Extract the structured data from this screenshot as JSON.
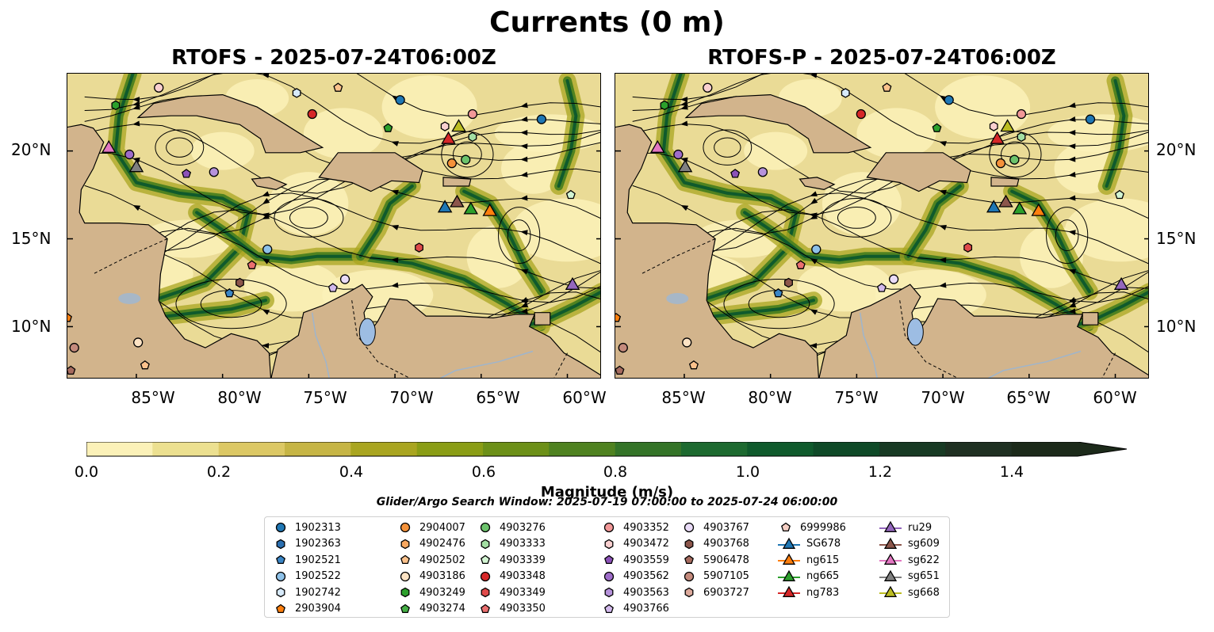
{
  "title": "Currents (0 m)",
  "panels": [
    {
      "title": "RTOFS - 2025-07-24T06:00Z"
    },
    {
      "title": "RTOFS-P - 2025-07-24T06:00Z"
    }
  ],
  "lat_labels": [
    "20°N",
    "15°N",
    "10°N"
  ],
  "lon_labels": [
    "85°W",
    "80°W",
    "75°W",
    "70°W",
    "65°W",
    "60°W"
  ],
  "map_extent": {
    "lon": [
      -89,
      -58
    ],
    "lat": [
      7,
      24.4
    ]
  },
  "colorbar": {
    "label": "Magnitude (m/s)",
    "ticks": [
      "0.0",
      "0.2",
      "0.4",
      "0.6",
      "0.8",
      "1.0",
      "1.2",
      "1.4"
    ],
    "colors": [
      "#fbf1b8",
      "#ece090",
      "#dcc865",
      "#c6b545",
      "#a9a520",
      "#8a9d15",
      "#6c9018",
      "#4f8220",
      "#347428",
      "#1d6a30",
      "#0f5a2c",
      "#0f4a28",
      "#183a24",
      "#1f3022",
      "#1c2a1a"
    ]
  },
  "search_window": "Glider/Argo Search Window: 2025-07-19 07:00:00 to 2025-07-24 06:00:00",
  "legend": [
    {
      "label": "1902313",
      "shape": "circle",
      "color": "#1f77b4"
    },
    {
      "label": "1902363",
      "shape": "hexagon",
      "color": "#2b6fb0"
    },
    {
      "label": "1902521",
      "shape": "pentagon",
      "color": "#3a85c5"
    },
    {
      "label": "1902522",
      "shape": "circle",
      "color": "#8ec1e8"
    },
    {
      "label": "1902742",
      "shape": "hexagon",
      "color": "#d7eafa"
    },
    {
      "label": "2903904",
      "shape": "pentagon",
      "color": "#ff7f0e"
    },
    {
      "label": "2904007",
      "shape": "circle",
      "color": "#f5923a"
    },
    {
      "label": "4902476",
      "shape": "hexagon",
      "color": "#f9a860"
    },
    {
      "label": "4902502",
      "shape": "pentagon",
      "color": "#fcc28c"
    },
    {
      "label": "4903186",
      "shape": "circle",
      "color": "#fde3c4"
    },
    {
      "label": "4903249",
      "shape": "hexagon",
      "color": "#2ca02c"
    },
    {
      "label": "4903274",
      "shape": "pentagon",
      "color": "#45ae45"
    },
    {
      "label": "4903276",
      "shape": "circle",
      "color": "#6cc36c"
    },
    {
      "label": "4903333",
      "shape": "hexagon",
      "color": "#a3dea3"
    },
    {
      "label": "4903339",
      "shape": "pentagon",
      "color": "#d3f5d3"
    },
    {
      "label": "4903348",
      "shape": "circle",
      "color": "#d62728"
    },
    {
      "label": "4903349",
      "shape": "hexagon",
      "color": "#df4a4a"
    },
    {
      "label": "4903350",
      "shape": "pentagon",
      "color": "#ea6f6f"
    },
    {
      "label": "4903352",
      "shape": "circle",
      "color": "#f29898"
    },
    {
      "label": "4903472",
      "shape": "hexagon",
      "color": "#fad0d0"
    },
    {
      "label": "4903559",
      "shape": "pentagon",
      "color": "#8c52b8"
    },
    {
      "label": "4903562",
      "shape": "circle",
      "color": "#9e6cc9"
    },
    {
      "label": "4903563",
      "shape": "hexagon",
      "color": "#b692db"
    },
    {
      "label": "4903766",
      "shape": "pentagon",
      "color": "#d2b9ec"
    },
    {
      "label": "4903767",
      "shape": "circle",
      "color": "#eadcf8"
    },
    {
      "label": "4903768",
      "shape": "hexagon",
      "color": "#8c564b"
    },
    {
      "label": "5906478",
      "shape": "pentagon",
      "color": "#a66b5f"
    },
    {
      "label": "5907105",
      "shape": "circle",
      "color": "#c48a7c"
    },
    {
      "label": "6903727",
      "shape": "hexagon",
      "color": "#ddaa9c"
    },
    {
      "label": "6999986",
      "shape": "pentagon",
      "color": "#f5cfc4"
    },
    {
      "label": "SG678",
      "shape": "triangle",
      "color": "#1f77b4"
    },
    {
      "label": "ng615",
      "shape": "triangle",
      "color": "#ff7f0e"
    },
    {
      "label": "ng665",
      "shape": "triangle",
      "color": "#2ca02c"
    },
    {
      "label": "ng783",
      "shape": "triangle",
      "color": "#d62728"
    },
    {
      "label": "ru29",
      "shape": "triangle",
      "color": "#9467bd"
    },
    {
      "label": "sg609",
      "shape": "triangle",
      "color": "#8c564b"
    },
    {
      "label": "sg622",
      "shape": "triangle",
      "color": "#e377c2"
    },
    {
      "label": "sg651",
      "shape": "triangle",
      "color": "#7f7f7f"
    },
    {
      "label": "sg668",
      "shape": "triangle",
      "color": "#bcbd22"
    }
  ],
  "markers": [
    {
      "lon": -86.2,
      "lat": 22.6,
      "shape": "hexagon",
      "color": "#2ca02c"
    },
    {
      "lon": -83.7,
      "lat": 23.6,
      "shape": "circle",
      "color": "#fad0d0"
    },
    {
      "lon": -73.3,
      "lat": 23.6,
      "shape": "pentagon",
      "color": "#fcc28c"
    },
    {
      "lon": -75.7,
      "lat": 23.3,
      "shape": "hexagon",
      "color": "#d7eafa"
    },
    {
      "lon": -74.8,
      "lat": 22.1,
      "shape": "circle",
      "color": "#d62728"
    },
    {
      "lon": -69.7,
      "lat": 22.9,
      "shape": "circle",
      "color": "#1f77b4"
    },
    {
      "lon": -70.4,
      "lat": 21.3,
      "shape": "pentagon",
      "color": "#2ca02c"
    },
    {
      "lon": -67.1,
      "lat": 21.4,
      "shape": "hexagon",
      "color": "#fad0d0"
    },
    {
      "lon": -65.5,
      "lat": 22.1,
      "shape": "circle",
      "color": "#f29898"
    },
    {
      "lon": -61.5,
      "lat": 21.8,
      "shape": "circle",
      "color": "#1f77b4"
    },
    {
      "lon": -65.5,
      "lat": 20.8,
      "shape": "hexagon",
      "color": "#a3dea3"
    },
    {
      "lon": -66.9,
      "lat": 20.7,
      "shape": "triangle",
      "color": "#d62728"
    },
    {
      "lon": -66.3,
      "lat": 21.4,
      "shape": "triangle",
      "color": "#bcbd22"
    },
    {
      "lon": -86.6,
      "lat": 20.2,
      "shape": "triangle",
      "color": "#e377c2"
    },
    {
      "lon": -85.4,
      "lat": 19.8,
      "shape": "circle",
      "color": "#9e6cc9"
    },
    {
      "lon": -85.0,
      "lat": 19.1,
      "shape": "triangle",
      "color": "#7f7f7f"
    },
    {
      "lon": -82.1,
      "lat": 18.7,
      "shape": "pentagon",
      "color": "#8c52b8"
    },
    {
      "lon": -80.5,
      "lat": 18.8,
      "shape": "circle",
      "color": "#b692db"
    },
    {
      "lon": -66.7,
      "lat": 19.3,
      "shape": "circle",
      "color": "#f5923a"
    },
    {
      "lon": -65.9,
      "lat": 19.5,
      "shape": "circle",
      "color": "#6cc36c"
    },
    {
      "lon": -59.8,
      "lat": 17.5,
      "shape": "pentagon",
      "color": "#d3f5d3"
    },
    {
      "lon": -67.1,
      "lat": 16.8,
      "shape": "triangle",
      "color": "#1f77b4"
    },
    {
      "lon": -66.4,
      "lat": 17.1,
      "shape": "triangle",
      "color": "#8c564b"
    },
    {
      "lon": -65.6,
      "lat": 16.7,
      "shape": "triangle",
      "color": "#2ca02c"
    },
    {
      "lon": -64.5,
      "lat": 16.6,
      "shape": "triangle",
      "color": "#ff7f0e"
    },
    {
      "lon": -77.4,
      "lat": 14.4,
      "shape": "circle",
      "color": "#8ec1e8"
    },
    {
      "lon": -78.3,
      "lat": 13.5,
      "shape": "pentagon",
      "color": "#ea6f6f"
    },
    {
      "lon": -68.6,
      "lat": 14.5,
      "shape": "hexagon",
      "color": "#df4a4a"
    },
    {
      "lon": -72.9,
      "lat": 12.7,
      "shape": "circle",
      "color": "#eadcf8"
    },
    {
      "lon": -73.6,
      "lat": 12.2,
      "shape": "pentagon",
      "color": "#d2b9ec"
    },
    {
      "lon": -79.0,
      "lat": 12.5,
      "shape": "hexagon",
      "color": "#8c564b"
    },
    {
      "lon": -79.6,
      "lat": 11.9,
      "shape": "pentagon",
      "color": "#3a85c5"
    },
    {
      "lon": -59.7,
      "lat": 12.4,
      "shape": "triangle",
      "color": "#9467bd"
    },
    {
      "lon": -89.0,
      "lat": 10.5,
      "shape": "pentagon",
      "color": "#ff7f0e"
    },
    {
      "lon": -88.6,
      "lat": 8.8,
      "shape": "circle",
      "color": "#c48a7c"
    },
    {
      "lon": -84.9,
      "lat": 9.1,
      "shape": "circle",
      "color": "#fde3c4"
    },
    {
      "lon": -84.5,
      "lat": 7.8,
      "shape": "pentagon",
      "color": "#fcc28c"
    },
    {
      "lon": -88.8,
      "lat": 7.5,
      "shape": "pentagon",
      "color": "#a66b5f"
    }
  ]
}
